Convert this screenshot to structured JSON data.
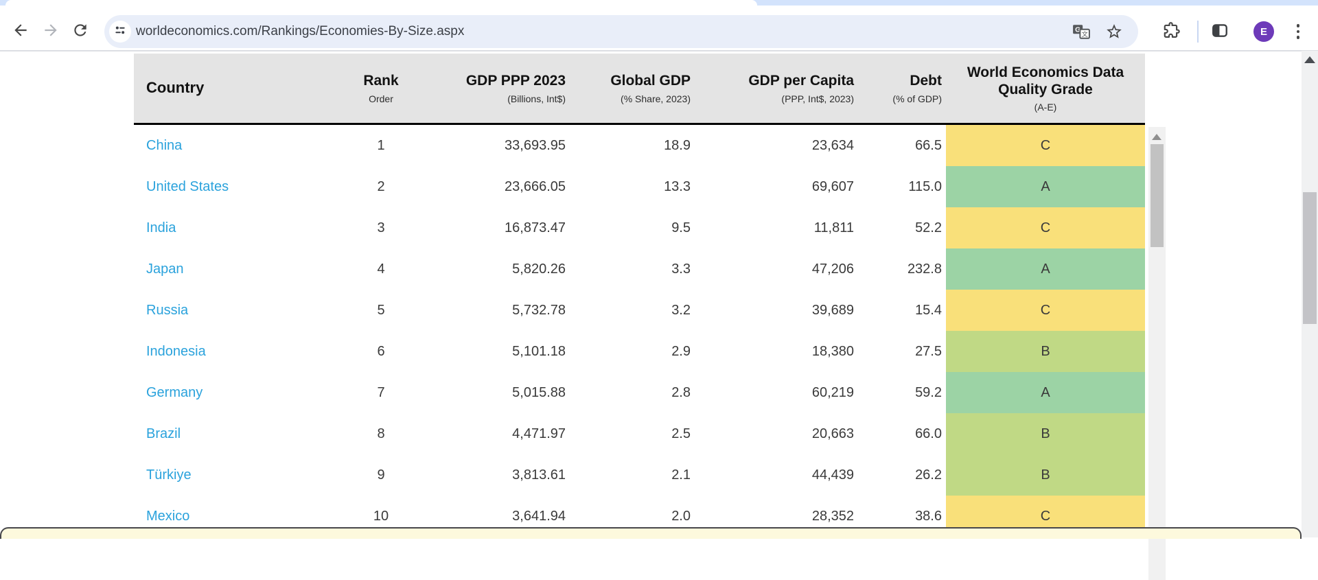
{
  "browser": {
    "url": "worldeconomics.com/Rankings/Economies-By-Size.aspx",
    "profile_initial": "E",
    "icons": {
      "back": "back-arrow",
      "forward": "forward-arrow",
      "reload": "reload",
      "site_info": "tune-sliders",
      "translate": "google-translate",
      "bookmark": "star",
      "extensions": "puzzle",
      "side_panel": "side-panel",
      "menu": "three-dot-menu"
    }
  },
  "table": {
    "columns": [
      {
        "label": "Country",
        "sub": ""
      },
      {
        "label": "Rank",
        "sub": "Order"
      },
      {
        "label": "GDP PPP 2023",
        "sub": "(Billions, Int$)"
      },
      {
        "label": "Global GDP",
        "sub": "(% Share, 2023)"
      },
      {
        "label": "GDP per Capita",
        "sub": "(PPP, Int$, 2023)"
      },
      {
        "label": "Debt",
        "sub": "(% of GDP)"
      },
      {
        "label": "World Economics Data Quality Grade",
        "sub": "(A-E)"
      }
    ],
    "rows": [
      {
        "country": "China",
        "rank": "1",
        "gdp": "33,693.95",
        "share": "18.9",
        "per_capita": "23,634",
        "debt": "66.5",
        "grade": "C"
      },
      {
        "country": "United States",
        "rank": "2",
        "gdp": "23,666.05",
        "share": "13.3",
        "per_capita": "69,607",
        "debt": "115.0",
        "grade": "A"
      },
      {
        "country": "India",
        "rank": "3",
        "gdp": "16,873.47",
        "share": "9.5",
        "per_capita": "11,811",
        "debt": "52.2",
        "grade": "C"
      },
      {
        "country": "Japan",
        "rank": "4",
        "gdp": "5,820.26",
        "share": "3.3",
        "per_capita": "47,206",
        "debt": "232.8",
        "grade": "A"
      },
      {
        "country": "Russia",
        "rank": "5",
        "gdp": "5,732.78",
        "share": "3.2",
        "per_capita": "39,689",
        "debt": "15.4",
        "grade": "C"
      },
      {
        "country": "Indonesia",
        "rank": "6",
        "gdp": "5,101.18",
        "share": "2.9",
        "per_capita": "18,380",
        "debt": "27.5",
        "grade": "B"
      },
      {
        "country": "Germany",
        "rank": "7",
        "gdp": "5,015.88",
        "share": "2.8",
        "per_capita": "60,219",
        "debt": "59.2",
        "grade": "A"
      },
      {
        "country": "Brazil",
        "rank": "8",
        "gdp": "4,471.97",
        "share": "2.5",
        "per_capita": "20,663",
        "debt": "66.0",
        "grade": "B"
      },
      {
        "country": "Türkiye",
        "rank": "9",
        "gdp": "3,813.61",
        "share": "2.1",
        "per_capita": "44,439",
        "debt": "26.2",
        "grade": "B"
      },
      {
        "country": "Mexico",
        "rank": "10",
        "gdp": "3,641.94",
        "share": "2.0",
        "per_capita": "28,352",
        "debt": "38.6",
        "grade": "C"
      }
    ]
  },
  "colors": {
    "grade_A": "#9cd3a5",
    "grade_B": "#c0d985",
    "grade_C": "#f9e07a",
    "link": "#2aa2dc",
    "header_bg": "#e4e4e4",
    "omnibox_bg": "#e9eef9",
    "tabstrip_bg": "#d3e3fc",
    "notice_bar_bg": "#fdf9dd",
    "avatar_bg": "#6d3ab9"
  }
}
